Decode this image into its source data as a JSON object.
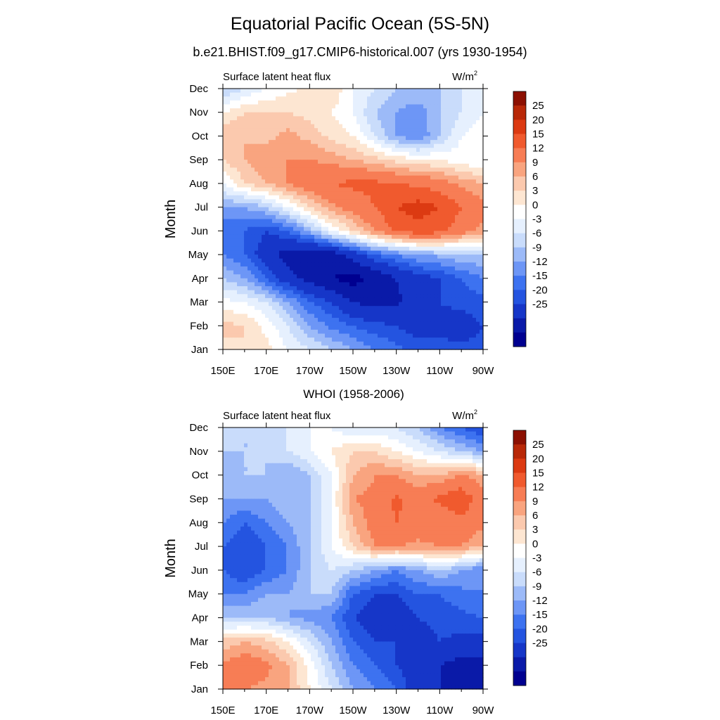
{
  "header": {
    "title": "Equatorial Pacific Ocean (5S-5N)",
    "subtitle": "b.e21.BHIST.f09_g17.CMIP6-historical.007 (yrs 1930-1954)"
  },
  "colorbar": {
    "colors": [
      "#000090",
      "#0a1aa8",
      "#1636c8",
      "#2454e0",
      "#3d72f0",
      "#6d96f6",
      "#9cbaf8",
      "#c9dcfb",
      "#e6f0fe",
      "#ffffff",
      "#fde6d2",
      "#fbc9ae",
      "#f9a47f",
      "#f77d55",
      "#f05a2e",
      "#dc3a12",
      "#b82808",
      "#8c1002"
    ],
    "label_values": [
      "25",
      "20",
      "15",
      "12",
      "9",
      "6",
      "3",
      "0",
      "-3",
      "-6",
      "-9",
      "-12",
      "-15",
      "-20",
      "-25"
    ]
  },
  "chart_data": [
    {
      "type": "heatmap",
      "panel_title": "",
      "left_label": "Surface latent heat flux",
      "units": "W/m",
      "units_sup": "2",
      "ylabel": "Month",
      "x_tick_labels": [
        "150E",
        "170E",
        "170W",
        "150W",
        "130W",
        "110W",
        "90W"
      ],
      "x_values_deg_east": [
        150,
        160,
        170,
        180,
        190,
        200,
        210,
        220,
        230,
        240,
        250,
        260,
        270
      ],
      "y_tick_labels": [
        "Jan",
        "Feb",
        "Mar",
        "Apr",
        "May",
        "Jun",
        "Jul",
        "Aug",
        "Sep",
        "Oct",
        "Nov",
        "Dec"
      ],
      "levels": [
        -25,
        -20,
        -15,
        -12,
        -9,
        -6,
        -3,
        0,
        3,
        6,
        9,
        12,
        15,
        20,
        25
      ],
      "values": [
        [
          8,
          9,
          7,
          3,
          0,
          -3,
          -6,
          -9,
          -11,
          -13,
          -14,
          -14,
          -14
        ],
        [
          10,
          9,
          5,
          0,
          -6,
          -10,
          -12,
          -14,
          -15,
          -17,
          -16,
          -17,
          -15
        ],
        [
          4,
          3,
          0,
          -6,
          -12,
          -15,
          -20,
          -22,
          -21,
          -17,
          -15,
          -14,
          -13
        ],
        [
          -3,
          -6,
          -12,
          -18,
          -22,
          -25,
          -27,
          -24,
          -20,
          -17,
          -15,
          -12,
          -9
        ],
        [
          -9,
          -12,
          -18,
          -22,
          -25,
          -23,
          -18,
          -12,
          -9,
          -6,
          -5,
          -3,
          -3
        ],
        [
          -12,
          -12,
          -15,
          -12,
          -5,
          3,
          9,
          15,
          21,
          23,
          22,
          17,
          14
        ],
        [
          -6,
          -6,
          -3,
          3,
          9,
          14,
          17,
          20,
          25,
          27,
          25,
          20,
          16
        ],
        [
          3,
          9,
          12,
          15,
          18,
          20,
          21,
          21,
          20,
          19,
          17,
          14,
          12
        ],
        [
          9,
          12,
          14,
          15,
          15,
          14,
          12,
          10,
          8,
          6,
          6,
          4,
          3
        ],
        [
          12,
          12,
          11,
          13,
          11,
          8,
          6,
          0,
          -6,
          -9,
          -3,
          3,
          5
        ],
        [
          6,
          9,
          9,
          9,
          8,
          6,
          3,
          -3,
          -6,
          -8,
          -3,
          0,
          3
        ],
        [
          -3,
          0,
          3,
          5,
          7,
          9,
          3,
          0,
          -3,
          -3,
          -3,
          0,
          3
        ]
      ]
    },
    {
      "type": "heatmap",
      "panel_title": "WHOI (1958-2006)",
      "left_label": "Surface latent heat flux",
      "units": "W/m",
      "units_sup": "2",
      "ylabel": "Month",
      "x_tick_labels": [
        "150E",
        "170E",
        "170W",
        "150W",
        "130W",
        "110W",
        "90W"
      ],
      "x_values_deg_east": [
        150,
        160,
        170,
        180,
        190,
        200,
        210,
        220,
        230,
        240,
        250,
        260,
        270
      ],
      "y_tick_labels": [
        "Jan",
        "Feb",
        "Mar",
        "Apr",
        "May",
        "Jun",
        "Jul",
        "Aug",
        "Sep",
        "Oct",
        "Nov",
        "Dec"
      ],
      "levels": [
        -25,
        -20,
        -15,
        -12,
        -9,
        -6,
        -3,
        0,
        3,
        6,
        9,
        12,
        15,
        20,
        25
      ],
      "values": [
        [
          15,
          15,
          14,
          12,
          6,
          0,
          -6,
          -9,
          -12,
          -18,
          -20,
          -22,
          -25
        ],
        [
          16,
          18,
          16,
          12,
          5,
          -3,
          -9,
          -12,
          -15,
          -18,
          -20,
          -22,
          -22
        ],
        [
          10,
          12,
          10,
          6,
          0,
          -6,
          -12,
          -15,
          -15,
          -17,
          -15,
          -16,
          -17
        ],
        [
          -3,
          -3,
          -3,
          -6,
          -7,
          -9,
          -15,
          -18,
          -18,
          -15,
          -14,
          -13,
          -12
        ],
        [
          -9,
          -9,
          -6,
          -6,
          -3,
          -3,
          -12,
          -15,
          -15,
          -12,
          -12,
          -10,
          -9
        ],
        [
          -12,
          -15,
          -12,
          -9,
          -3,
          0,
          -3,
          -6,
          -9,
          -6,
          -3,
          -6,
          -9
        ],
        [
          -12,
          -15,
          -12,
          -9,
          -3,
          3,
          9,
          15,
          15,
          14,
          15,
          15,
          12
        ],
        [
          -9,
          -12,
          -9,
          -6,
          -3,
          3,
          12,
          17,
          20,
          18,
          17,
          18,
          16
        ],
        [
          -6,
          -6,
          -6,
          -3,
          -3,
          3,
          15,
          16,
          21,
          18,
          21,
          24,
          16
        ],
        [
          -6,
          -3,
          -3,
          -6,
          -3,
          3,
          12,
          15,
          15,
          12,
          12,
          15,
          13
        ],
        [
          -3,
          -3,
          -3,
          0,
          3,
          6,
          9,
          9,
          6,
          3,
          0,
          -3,
          -6
        ],
        [
          -3,
          -3,
          -3,
          0,
          3,
          3,
          0,
          0,
          0,
          -3,
          -9,
          -12,
          -15
        ]
      ]
    }
  ]
}
